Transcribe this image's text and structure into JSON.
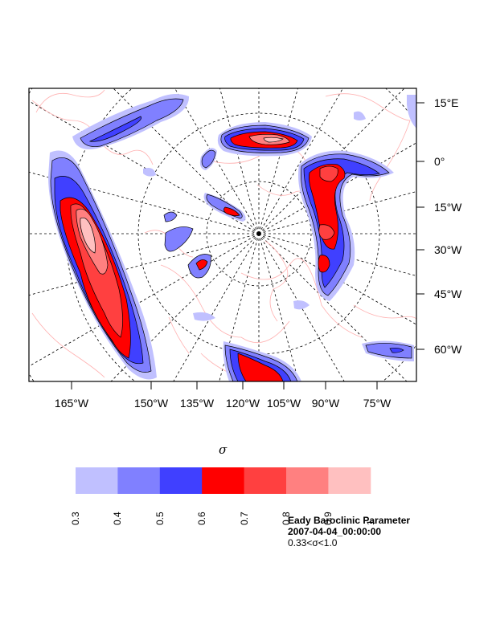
{
  "map": {
    "right_labels": [
      "15°E",
      "0°",
      "15°W",
      "30°W",
      "45°W",
      "60°W"
    ],
    "bottom_labels": [
      "165°W",
      "150°W",
      "135°W",
      "120°W",
      "105°W",
      "90°W",
      "75°W"
    ]
  },
  "colorbar": {
    "symbol": "σ",
    "ticks": [
      "0.3",
      "0.4",
      "0.5",
      "0.6",
      "0.7",
      "0.8",
      "0.9",
      "1"
    ],
    "colors": [
      "#c0c0ff",
      "#8080ff",
      "#4040ff",
      "#ff0000",
      "#ff4040",
      "#ff8080",
      "#ffc0c0"
    ]
  },
  "info": {
    "title": "Eady Baroclinic Parameter",
    "date": "2007-04-04_00:00:00",
    "range": " 0.33<σ<1.0"
  },
  "colors": {
    "coast": "#ff9a9a",
    "contour": "#000000",
    "background": "#ffffff"
  }
}
